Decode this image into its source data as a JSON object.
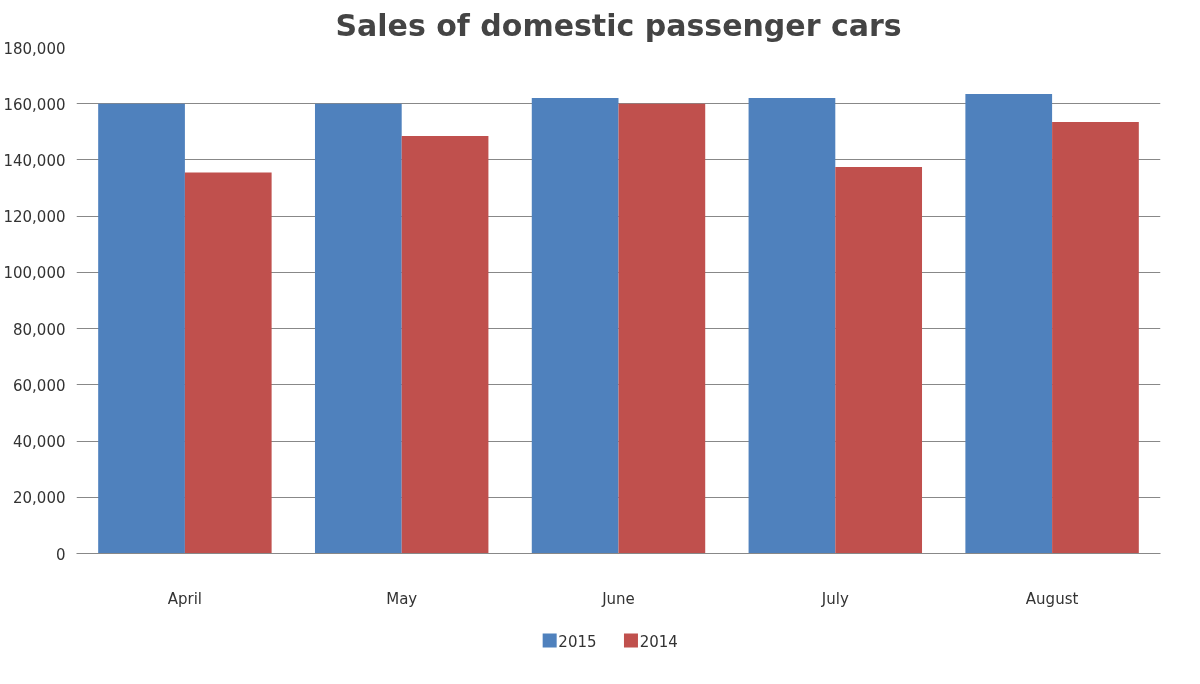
{
  "chart_data": {
    "type": "bar",
    "title": "Sales of domestic passenger cars",
    "categories": [
      "April",
      "May",
      "June",
      "July",
      "August"
    ],
    "series": [
      {
        "name": "2015",
        "color": "#4f81bd",
        "values": [
          160000,
          160000,
          162000,
          162000,
          163500
        ]
      },
      {
        "name": "2014",
        "color": "#c0504d",
        "values": [
          135500,
          148500,
          160000,
          137500,
          153500
        ]
      }
    ],
    "ylim": [
      0,
      180000
    ],
    "yticks": [
      {
        "value": 0,
        "label": "0"
      },
      {
        "value": 20000,
        "label": "20,000"
      },
      {
        "value": 40000,
        "label": "40,000"
      },
      {
        "value": 60000,
        "label": "60,000"
      },
      {
        "value": 80000,
        "label": "80,000"
      },
      {
        "value": 100000,
        "label": "100,000"
      },
      {
        "value": 120000,
        "label": "120,000"
      },
      {
        "value": 140000,
        "label": "140,000"
      },
      {
        "value": 160000,
        "label": "160,000"
      },
      {
        "value": 180000,
        "label": "180,000"
      }
    ],
    "grid": "y",
    "legend": "bottom"
  }
}
